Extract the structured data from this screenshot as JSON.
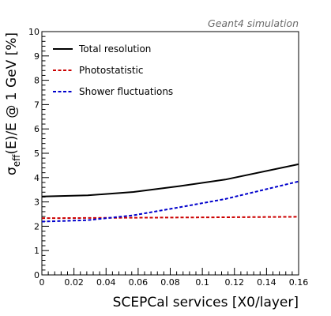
{
  "chart_data": {
    "type": "line",
    "annotation": "Geant4 simulation",
    "xlabel": "SCEPCal services [X0/layer]",
    "ylabel": {
      "prefix": "σ",
      "subscript": "eff",
      "suffix": "(E)/E @ 1 GeV [%]"
    },
    "xlim": [
      0,
      0.16
    ],
    "ylim": [
      0,
      10
    ],
    "xticks": [
      "0",
      "0.02",
      "0.04",
      "0.06",
      "0.08",
      "0.1",
      "0.12",
      "0.14",
      "0.16"
    ],
    "yticks": [
      "0",
      "1",
      "2",
      "3",
      "4",
      "5",
      "6",
      "7",
      "8",
      "9",
      "10"
    ],
    "grid": false,
    "legend_position": "top-left",
    "series": [
      {
        "name": "Total resolution",
        "color": "#000000",
        "style": "solid",
        "x": [
          0,
          0.0286,
          0.0571,
          0.0857,
          0.1143,
          0.16
        ],
        "y": [
          3.22,
          3.27,
          3.41,
          3.65,
          3.92,
          4.55
        ]
      },
      {
        "name": "Photostatistic",
        "color": "#cc0000",
        "style": "dashed",
        "x": [
          0,
          0.0286,
          0.0571,
          0.0857,
          0.1143,
          0.16
        ],
        "y": [
          2.33,
          2.34,
          2.35,
          2.36,
          2.37,
          2.39
        ]
      },
      {
        "name": "Shower fluctuations",
        "color": "#0000cc",
        "style": "dashed",
        "x": [
          0,
          0.0286,
          0.0571,
          0.0857,
          0.1143,
          0.16
        ],
        "y": [
          2.19,
          2.25,
          2.45,
          2.78,
          3.12,
          3.84
        ]
      }
    ]
  }
}
